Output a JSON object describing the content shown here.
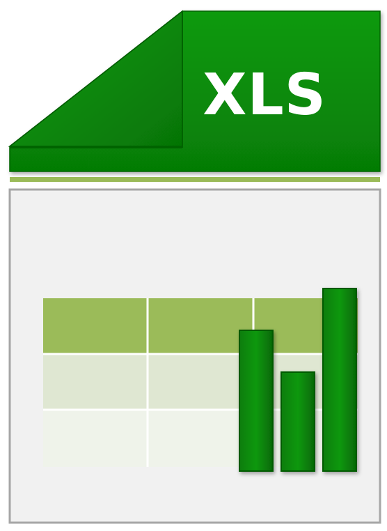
{
  "file_type_label": "XLS",
  "colors": {
    "tab_green": "#078A07",
    "tab_green_dark": "#046A04",
    "tab_green_light": "#2BA82B",
    "underline_green": "#9BBB59",
    "page_fill": "#F1F1F1",
    "page_border": "#A6A6A6",
    "table_header": "#9BBB59",
    "table_row_2": "#DFE7D2",
    "table_row_3": "#EFF3EA",
    "bar_green": "#068A06",
    "label_text": "#FFFFFF"
  },
  "icons": [
    "spreadsheet-file-icon",
    "bar-chart-icon",
    "table-grid-icon"
  ],
  "table": {
    "rows": 3,
    "columns": 3
  },
  "bars": {
    "count": 3,
    "relative_heights": [
      0.77,
      0.52,
      1.0
    ]
  }
}
